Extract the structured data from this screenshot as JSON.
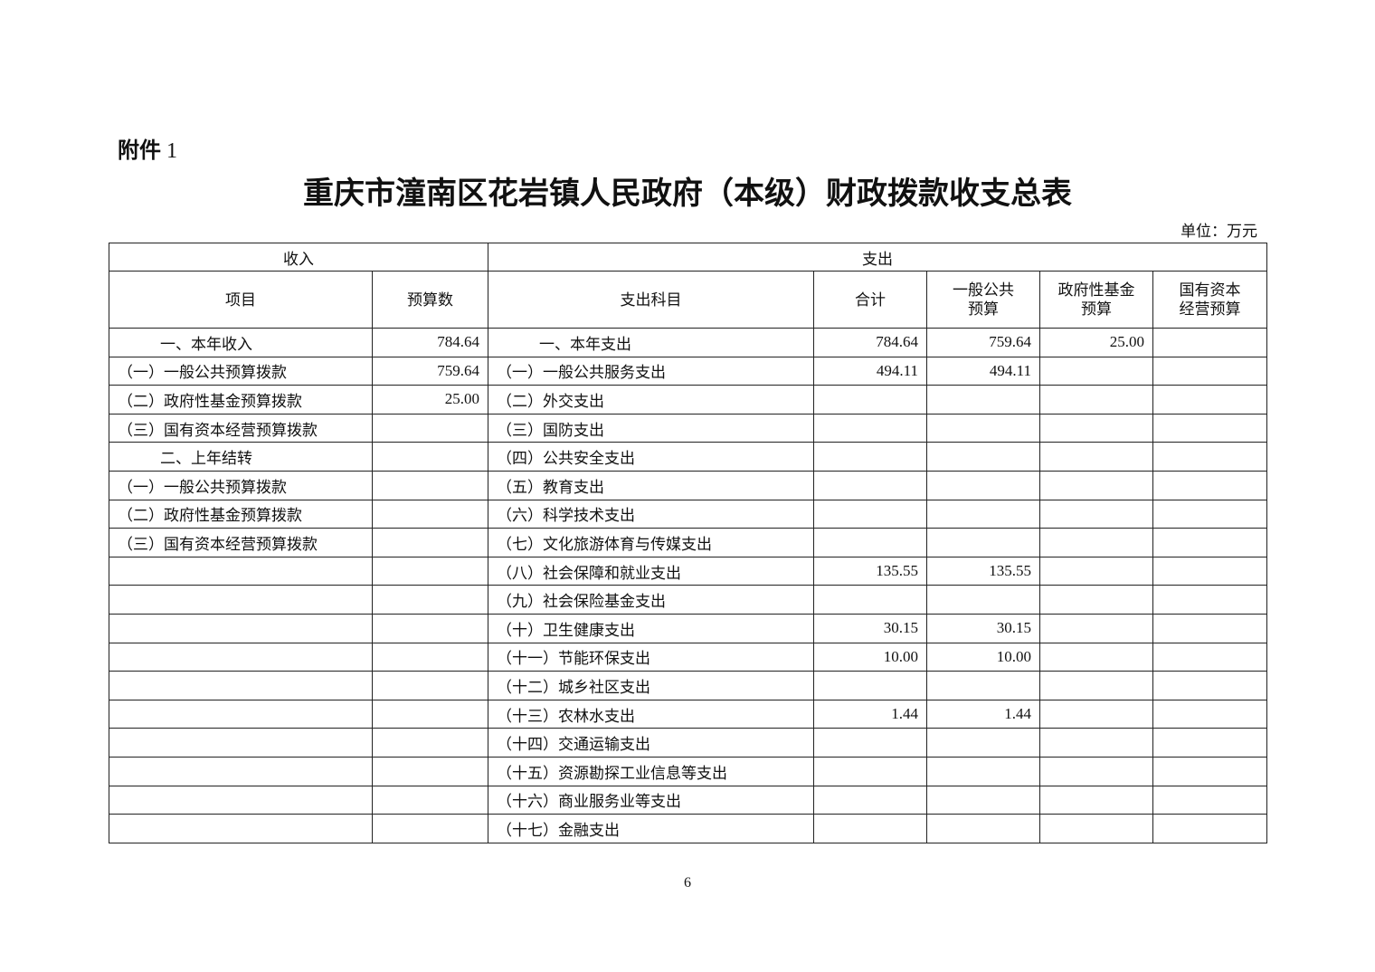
{
  "attachment": {
    "label": "附件",
    "number": "1"
  },
  "title": "重庆市潼南区花岩镇人民政府（本级）财政拨款收支总表",
  "unit": "单位：万元",
  "header": {
    "income": "收入",
    "expense": "支出",
    "columns": [
      "项目",
      "预算数",
      "支出科目",
      "合计",
      "一般公共\n预算",
      "政府性基金\n预算",
      "国有资本\n经营预算"
    ]
  },
  "rows": [
    [
      "一、本年收入",
      "784.64",
      "一、本年支出",
      "784.64",
      "759.64",
      "25.00",
      ""
    ],
    [
      "（一）一般公共预算拨款",
      "759.64",
      "（一）一般公共服务支出",
      "494.11",
      "494.11",
      "",
      ""
    ],
    [
      "（二）政府性基金预算拨款",
      "25.00",
      "（二）外交支出",
      "",
      "",
      "",
      ""
    ],
    [
      "（三）国有资本经营预算拨款",
      "",
      "（三）国防支出",
      "",
      "",
      "",
      ""
    ],
    [
      "二、上年结转",
      "",
      "（四）公共安全支出",
      "",
      "",
      "",
      ""
    ],
    [
      "（一）一般公共预算拨款",
      "",
      "（五）教育支出",
      "",
      "",
      "",
      ""
    ],
    [
      "（二）政府性基金预算拨款",
      "",
      "（六）科学技术支出",
      "",
      "",
      "",
      ""
    ],
    [
      "（三）国有资本经营预算拨款",
      "",
      "（七）文化旅游体育与传媒支出",
      "",
      "",
      "",
      ""
    ],
    [
      "",
      "",
      "（八）社会保障和就业支出",
      "135.55",
      "135.55",
      "",
      ""
    ],
    [
      "",
      "",
      "（九）社会保险基金支出",
      "",
      "",
      "",
      ""
    ],
    [
      "",
      "",
      "（十）卫生健康支出",
      "30.15",
      "30.15",
      "",
      ""
    ],
    [
      "",
      "",
      "（十一）节能环保支出",
      "10.00",
      "10.00",
      "",
      ""
    ],
    [
      "",
      "",
      "（十二）城乡社区支出",
      "",
      "",
      "",
      ""
    ],
    [
      "",
      "",
      "（十三）农林水支出",
      "1.44",
      "1.44",
      "",
      ""
    ],
    [
      "",
      "",
      "（十四）交通运输支出",
      "",
      "",
      "",
      ""
    ],
    [
      "",
      "",
      "（十五）资源勘探工业信息等支出",
      "",
      "",
      "",
      ""
    ],
    [
      "",
      "",
      "（十六）商业服务业等支出",
      "",
      "",
      "",
      ""
    ],
    [
      "",
      "",
      "（十七）金融支出",
      "",
      "",
      "",
      ""
    ]
  ],
  "page_number": "6"
}
